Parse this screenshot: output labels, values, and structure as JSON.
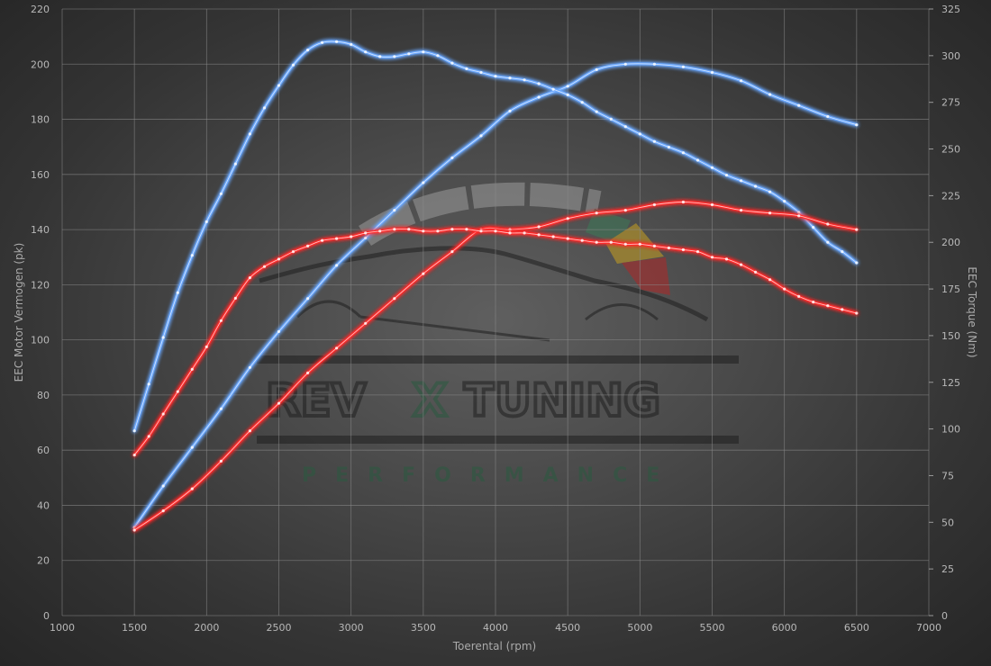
{
  "chart_data": {
    "type": "line",
    "x_label": "Toerental (rpm)",
    "y_left_label": "EEC Motor Vermogen (pk)",
    "y_right_label": "EEC Torque (Nm)",
    "xlim": [
      1000,
      7000
    ],
    "x_ticks": [
      1000,
      1500,
      2000,
      2500,
      3000,
      3500,
      4000,
      4500,
      5000,
      5500,
      6000,
      6500,
      7000
    ],
    "ylim_left": [
      0,
      220
    ],
    "y_left_ticks": [
      0,
      20,
      40,
      60,
      80,
      100,
      120,
      140,
      160,
      180,
      200,
      220
    ],
    "ylim_right": [
      0,
      325
    ],
    "y_right_ticks": [
      0,
      25,
      50,
      75,
      100,
      125,
      150,
      175,
      200,
      225,
      250,
      275,
      300,
      325
    ],
    "grid": true,
    "colors": {
      "tuned": "#6aa8ff",
      "stock": "#ff2a2a",
      "grid": "#8a8a8a",
      "background": "#3c3c3c"
    },
    "series": [
      {
        "axis": "left",
        "color": "tuned",
        "x": [
          1500,
          1700,
          1900,
          2100,
          2300,
          2500,
          2700,
          2900,
          3100,
          3300,
          3500,
          3700,
          3900,
          4100,
          4300,
          4500,
          4700,
          4900,
          5100,
          5300,
          5500,
          5700,
          5900,
          6100,
          6300,
          6500
        ],
        "y": [
          32,
          47,
          61,
          75,
          90,
          103,
          115,
          127,
          137,
          147,
          157,
          166,
          174,
          183,
          188,
          192,
          198,
          200,
          200,
          199,
          197,
          194,
          189,
          185,
          181,
          178
        ]
      },
      {
        "axis": "right",
        "color": "tuned",
        "x": [
          1500,
          1600,
          1700,
          1800,
          1900,
          2000,
          2100,
          2200,
          2300,
          2400,
          2500,
          2600,
          2700,
          2800,
          2900,
          3000,
          3100,
          3200,
          3300,
          3400,
          3500,
          3600,
          3700,
          3800,
          3900,
          4000,
          4100,
          4200,
          4300,
          4400,
          4500,
          4600,
          4700,
          4800,
          4900,
          5000,
          5100,
          5200,
          5300,
          5400,
          5500,
          5600,
          5700,
          5800,
          5900,
          6000,
          6100,
          6200,
          6300,
          6400,
          6500
        ],
        "y": [
          99,
          124,
          149,
          173,
          193,
          211,
          226,
          242,
          258,
          272,
          284,
          295,
          303,
          307,
          307.5,
          306,
          302,
          299.5,
          299.5,
          301,
          302,
          300,
          296,
          293,
          291,
          289,
          288,
          287,
          285,
          282,
          279,
          275,
          270,
          266,
          262,
          258,
          254,
          251,
          248,
          244,
          240,
          236,
          233,
          230,
          227,
          222,
          216,
          208,
          200,
          195,
          189
        ]
      },
      {
        "axis": "left",
        "color": "stock",
        "x": [
          1500,
          1700,
          1900,
          2100,
          2300,
          2500,
          2700,
          2900,
          3100,
          3300,
          3500,
          3700,
          3900,
          4100,
          4300,
          4500,
          4700,
          4900,
          5100,
          5300,
          5500,
          5700,
          5900,
          6100,
          6300,
          6500
        ],
        "y": [
          31,
          38,
          46,
          56,
          67,
          77,
          88,
          97,
          106,
          115,
          124,
          132,
          140,
          140,
          141,
          144,
          146,
          147,
          149,
          150,
          149,
          147,
          146,
          145,
          142,
          140
        ]
      },
      {
        "axis": "right",
        "color": "stock",
        "x": [
          1500,
          1600,
          1700,
          1800,
          1900,
          2000,
          2100,
          2200,
          2300,
          2400,
          2500,
          2600,
          2700,
          2800,
          2900,
          3000,
          3100,
          3200,
          3300,
          3400,
          3500,
          3600,
          3700,
          3800,
          3900,
          4000,
          4100,
          4200,
          4300,
          4400,
          4500,
          4600,
          4700,
          4800,
          4900,
          5000,
          5100,
          5200,
          5300,
          5400,
          5500,
          5600,
          5700,
          5800,
          5900,
          6000,
          6100,
          6200,
          6300,
          6400,
          6500
        ],
        "y": [
          86,
          96,
          108,
          120,
          132,
          144,
          158,
          170,
          181,
          187,
          191,
          195,
          198,
          201,
          202,
          203,
          205,
          206,
          207,
          207,
          206,
          206,
          207,
          207,
          206,
          206,
          205,
          205,
          204,
          203,
          202,
          201,
          200,
          200,
          199,
          199,
          198,
          197,
          196,
          195,
          192,
          191,
          188,
          184,
          180,
          175,
          171,
          168,
          166,
          164,
          162
        ]
      }
    ],
    "watermark": {
      "brand_left": "REV",
      "brand_x": "X",
      "brand_right": "TUNING",
      "sub": "PERFORMANCE"
    }
  }
}
